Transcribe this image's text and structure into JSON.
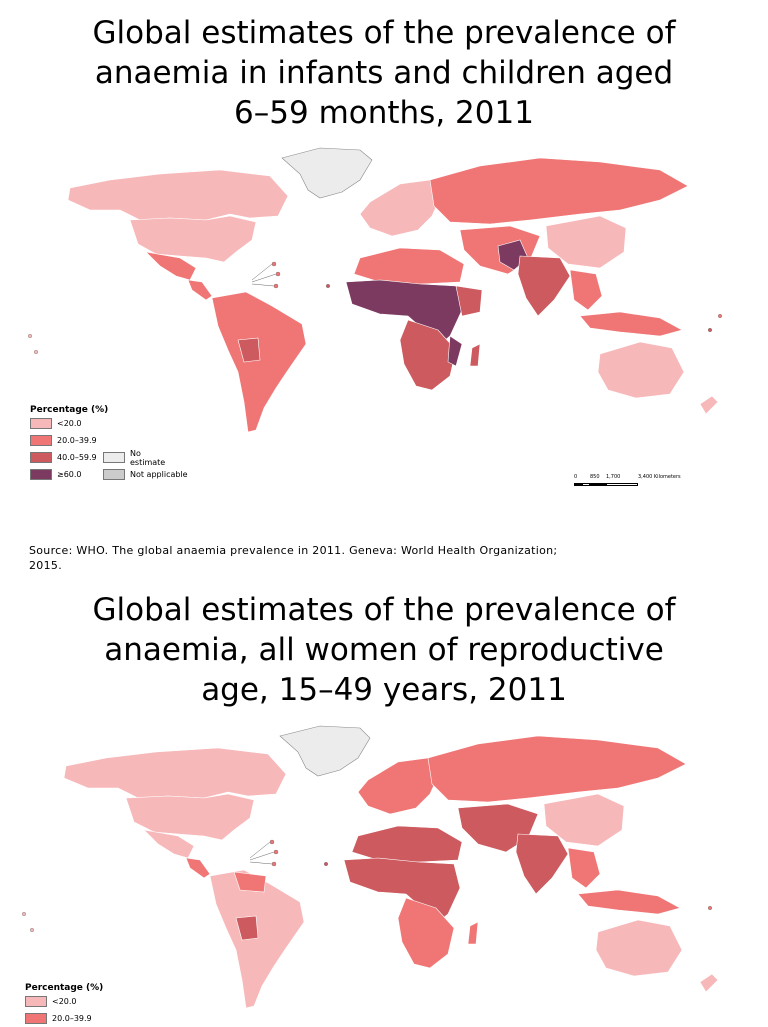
{
  "maps": [
    {
      "title_lines": [
        "Global estimates of the prevalence of",
        "anaemia in infants and children aged",
        "6–59 months, 2011"
      ],
      "legend": {
        "title": "Percentage (%)",
        "items": [
          {
            "label": "<20.0",
            "color": "#f7b8ba"
          },
          {
            "label": "20.0–39.9",
            "color": "#f07676"
          },
          {
            "label": "40.0–59.9",
            "color": "#cc5a5e"
          },
          {
            "label": "≥60.0",
            "color": "#7c3a61"
          }
        ],
        "extra_items": [
          {
            "label": "No estimate",
            "color": "#ececec"
          },
          {
            "label": "Not applicable",
            "color": "#cccccc"
          }
        ]
      },
      "scale_bar": {
        "ticks": [
          "0",
          "850",
          "1,700",
          "3,400 Kilometers"
        ]
      }
    },
    {
      "title_lines": [
        "Global estimates of the prevalence of",
        "anaemia, all women of reproductive",
        "age, 15–49 years, 2011"
      ],
      "legend": {
        "title": "Percentage (%)",
        "items": [
          {
            "label": "<20.0",
            "color": "#f7b8ba"
          },
          {
            "label": "20.0–39.9",
            "color": "#f07676"
          }
        ]
      }
    }
  ],
  "source": {
    "text": "Source:  WHO. The global anaemia prevalence in 2011. Geneva: World Health Organization; 2015."
  },
  "colors": {
    "lt20": "#f7b8ba",
    "c20_40": "#f07676",
    "c40_60": "#cc5a5e",
    "gte60": "#7c3a61",
    "no_estimate": "#ececec",
    "not_applicable": "#cccccc"
  }
}
